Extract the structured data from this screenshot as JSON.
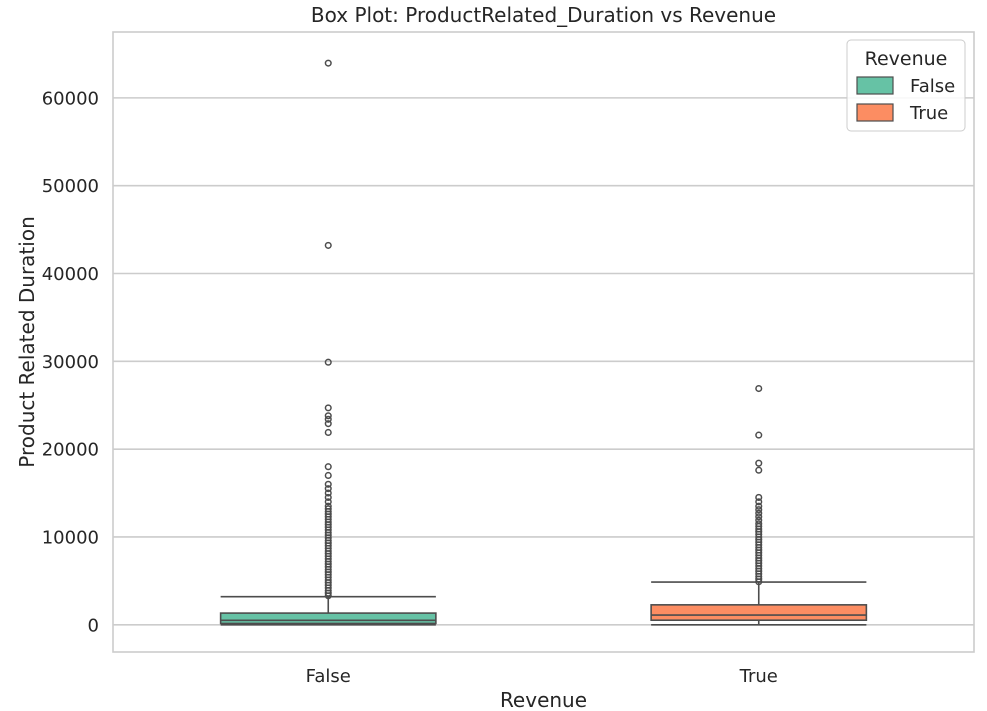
{
  "chart_data": {
    "type": "box",
    "title": "Box Plot: ProductRelated_Duration vs Revenue",
    "xlabel": "Revenue",
    "ylabel": "Product Related Duration",
    "categories": [
      "False",
      "True"
    ],
    "ylim": [
      -3100,
      67500
    ],
    "yticks": [
      0,
      10000,
      20000,
      30000,
      40000,
      50000,
      60000
    ],
    "grid": true,
    "legend": {
      "title": "Revenue",
      "placement": "top-right",
      "entries": [
        "False",
        "True"
      ]
    },
    "series": [
      {
        "name": "False",
        "color": "#66c2a5",
        "stats": {
          "whisker_low": 0,
          "q1": 150,
          "median": 510,
          "q3": 1330,
          "whisker_high": 3200
        },
        "outliers": [
          3300,
          3600,
          3900,
          4200,
          4500,
          4800,
          5100,
          5400,
          5700,
          6000,
          6300,
          6600,
          6900,
          7200,
          7500,
          7800,
          8100,
          8400,
          8700,
          9000,
          9300,
          9600,
          9900,
          10200,
          10500,
          10800,
          11100,
          11400,
          11700,
          12000,
          12300,
          12600,
          12900,
          13200,
          13500,
          14000,
          14500,
          15000,
          15500,
          16000,
          17000,
          18000,
          21900,
          22900,
          23400,
          23800,
          24700,
          29900,
          43200,
          63950
        ]
      },
      {
        "name": "True",
        "color": "#fc8d62",
        "stats": {
          "whisker_low": 0,
          "q1": 520,
          "median": 1110,
          "q3": 2270,
          "whisker_high": 4860
        },
        "outliers": [
          4900,
          5200,
          5500,
          5800,
          6100,
          6400,
          6700,
          7000,
          7300,
          7600,
          7900,
          8200,
          8500,
          8800,
          9100,
          9400,
          9700,
          10000,
          10300,
          10600,
          10900,
          11200,
          11500,
          11900,
          12300,
          12700,
          13100,
          13500,
          14000,
          14500,
          17600,
          18400,
          21600,
          26900
        ]
      }
    ]
  }
}
